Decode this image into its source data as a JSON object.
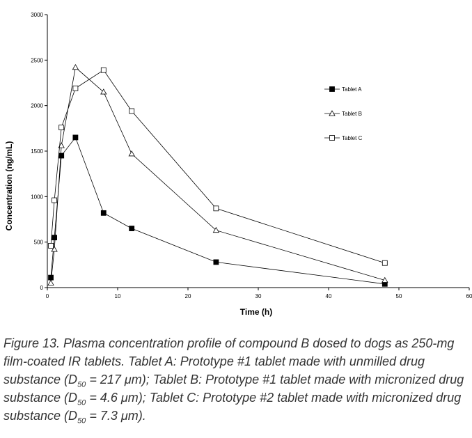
{
  "chart_data": {
    "type": "line",
    "title": "",
    "xlabel": "Time (h)",
    "ylabel": "Concentration (ng/mL)",
    "xlim": [
      0,
      60
    ],
    "ylim": [
      0,
      3000
    ],
    "xticks": [
      "0",
      "10",
      "20",
      "30",
      "40",
      "50",
      "60"
    ],
    "yticks": [
      "0",
      "500",
      "1000",
      "1500",
      "2000",
      "2500",
      "3000"
    ],
    "grid": false,
    "legend_position": "right",
    "x": [
      0.5,
      1,
      2,
      4,
      8,
      12,
      24,
      48
    ],
    "series": [
      {
        "name": "Tablet A",
        "marker": "filled-square",
        "values": [
          110,
          550,
          1450,
          1650,
          820,
          650,
          280,
          40
        ]
      },
      {
        "name": "Tablet B",
        "marker": "open-triangle",
        "values": [
          50,
          420,
          1560,
          2420,
          2150,
          1470,
          630,
          80
        ]
      },
      {
        "name": "Tablet C",
        "marker": "open-square",
        "values": [
          460,
          960,
          1760,
          2190,
          2390,
          1940,
          870,
          270
        ]
      }
    ]
  },
  "caption": {
    "part1": "Figure 13. Plasma concentration profile of compound B dosed to dogs as 250-mg film-coated IR tablets. Tablet A: Prototype #1 tablet made with unmilled drug substance (D",
    "sub1": "50",
    "part2": " = 217 μm); Tablet B: Prototype #1 tablet made with micronized drug substance (D",
    "sub2": "50",
    "part3": " = 4.6 μm); Tablet C: Prototype #2 tablet made with micronized drug substance (D",
    "sub3": "50",
    "part4": " = 7.3 μm)."
  }
}
